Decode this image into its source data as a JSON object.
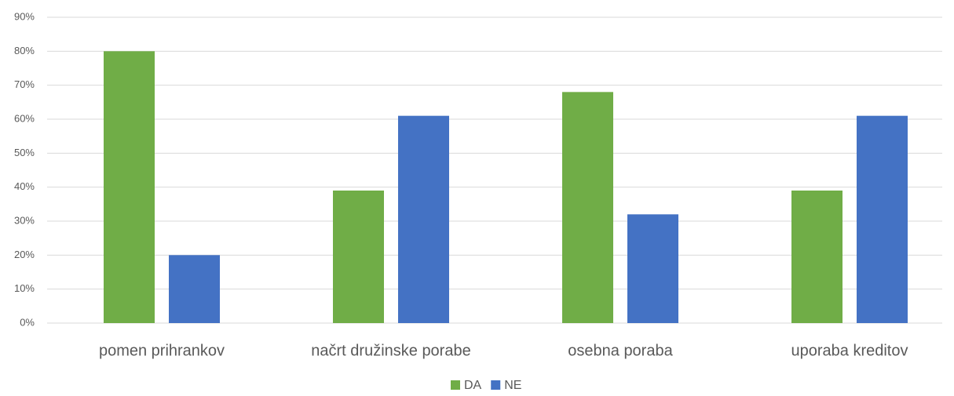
{
  "chart_data": {
    "type": "bar",
    "categories": [
      "pomen prihrankov",
      "načrt družinske porabe",
      "osebna poraba",
      "uporaba kreditov"
    ],
    "series": [
      {
        "name": "DA",
        "color": "#70ad47",
        "values": [
          80,
          39,
          68,
          39
        ]
      },
      {
        "name": "NE",
        "color": "#4472c4",
        "values": [
          20,
          61,
          32,
          61
        ]
      }
    ],
    "ylim": [
      0,
      90
    ],
    "yticks": [
      {
        "value": 0,
        "label": "0%"
      },
      {
        "value": 10,
        "label": "10%"
      },
      {
        "value": 20,
        "label": "20%"
      },
      {
        "value": 30,
        "label": "30%"
      },
      {
        "value": 40,
        "label": "40%"
      },
      {
        "value": 50,
        "label": "50%"
      },
      {
        "value": 60,
        "label": "60%"
      },
      {
        "value": 70,
        "label": "70%"
      },
      {
        "value": 80,
        "label": "80%"
      },
      {
        "value": 90,
        "label": "90%"
      }
    ],
    "grid": true,
    "legend": "bottom"
  }
}
